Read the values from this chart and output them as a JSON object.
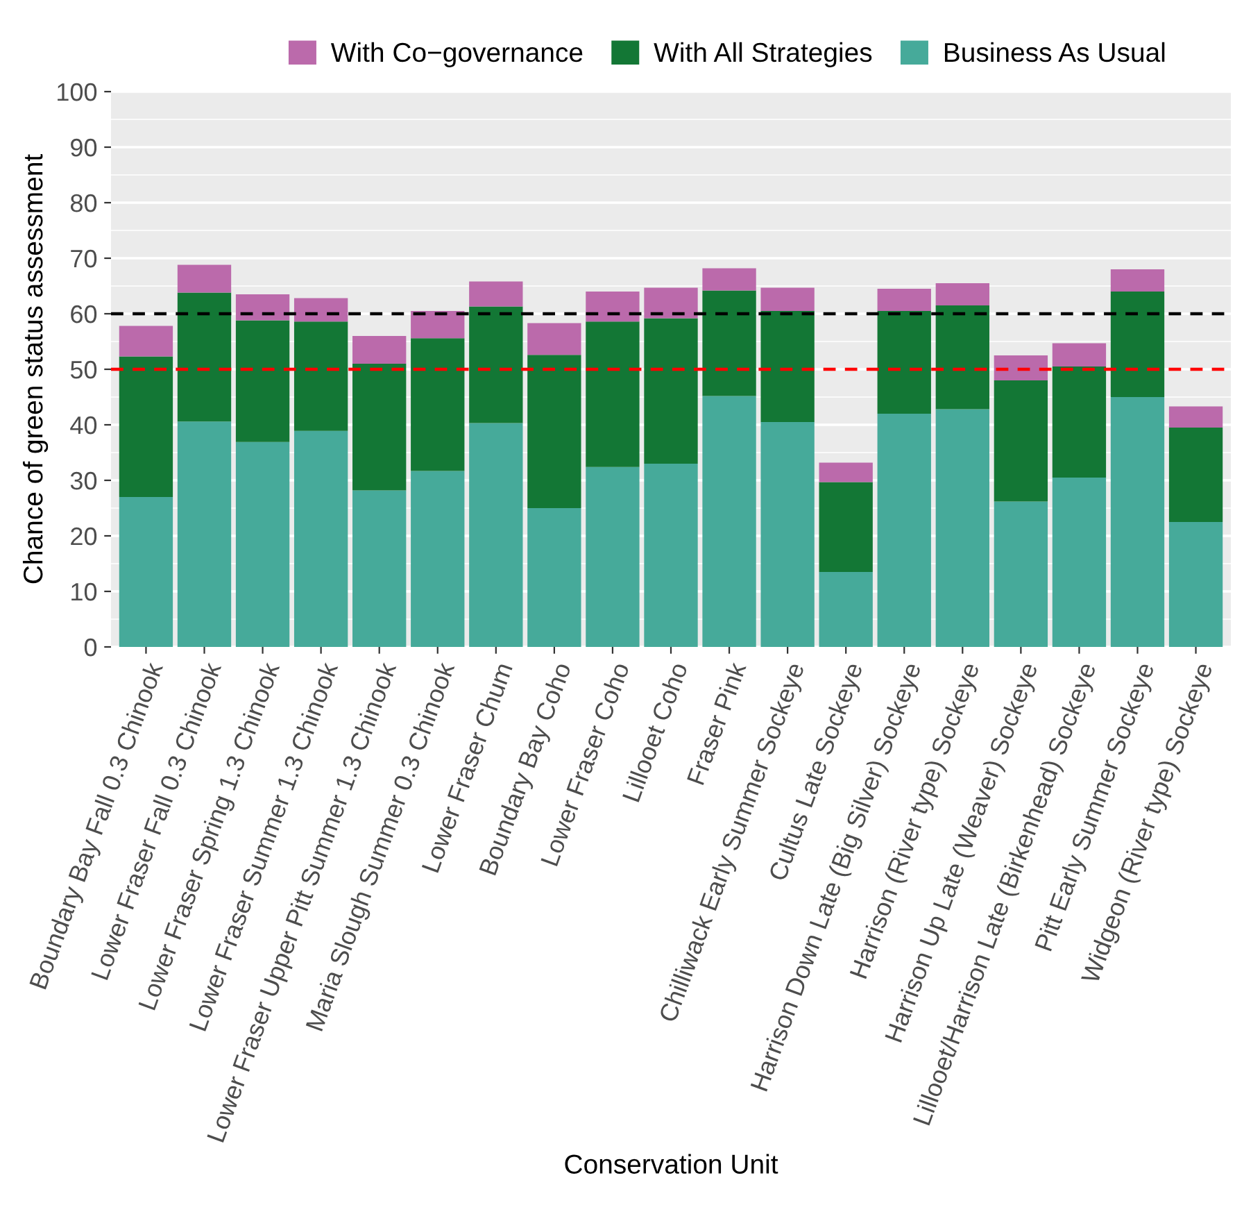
{
  "chart_data": {
    "type": "bar",
    "stacked": true,
    "xlabel": "Conservation Unit",
    "ylabel": "Chance of green status assessment",
    "categories": [
      "Boundary Bay Fall 0.3 Chinook",
      "Lower Fraser Fall 0.3 Chinook",
      "Lower Fraser Spring 1.3 Chinook",
      "Lower Fraser Summer 1.3 Chinook",
      "Lower Fraser Upper Pitt Summer 1.3 Chinook",
      "Maria Slough Summer 0.3 Chinook",
      "Lower Fraser Chum",
      "Boundary Bay Coho",
      "Lower Fraser Coho",
      "Lillooet Coho",
      "Fraser Pink",
      "Chilliwack Early Summer Sockeye",
      "Cultus Late Sockeye",
      "Harrison Down Late (Big Silver) Sockeye",
      "Harrison (River type) Sockeye",
      "Harrison Up Late (Weaver) Sockeye",
      "Lillooet/Harrison Late (Birkenhead) Sockeye",
      "Pitt Early Summer Sockeye",
      "Widgeon (River type) Sockeye"
    ],
    "series": [
      {
        "name": "Business As Usual",
        "color": "#46aa9a",
        "values": [
          27.0,
          40.6,
          36.9,
          38.9,
          28.2,
          31.7,
          40.3,
          25.0,
          32.4,
          33.0,
          45.2,
          40.5,
          13.5,
          42.0,
          42.8,
          26.2,
          30.5,
          45.0,
          22.5
        ]
      },
      {
        "name": "With All Strategies",
        "color": "#137735",
        "values": [
          25.3,
          23.2,
          21.9,
          19.7,
          22.8,
          23.9,
          21.0,
          27.6,
          26.2,
          26.2,
          19.0,
          20.0,
          16.2,
          18.5,
          18.7,
          21.8,
          20.0,
          19.0,
          17.0
        ]
      },
      {
        "name": "With Co−governance",
        "color": "#bb6aab",
        "values": [
          5.5,
          5.0,
          4.7,
          4.2,
          5.0,
          4.9,
          4.5,
          5.7,
          5.4,
          5.5,
          4.0,
          4.2,
          3.5,
          4.0,
          4.0,
          4.5,
          4.2,
          4.0,
          3.8
        ]
      }
    ],
    "ylim": [
      0,
      100
    ],
    "yticks": [
      0,
      10,
      20,
      30,
      40,
      50,
      60,
      70,
      80,
      90,
      100
    ],
    "ref_lines": [
      {
        "axis": "y",
        "value": 60,
        "color": "#000000",
        "line_style": "dashed"
      },
      {
        "axis": "y",
        "value": 50,
        "color": "#ff0000",
        "line_style": "dashed"
      }
    ],
    "grid": "y",
    "legend": "top"
  }
}
